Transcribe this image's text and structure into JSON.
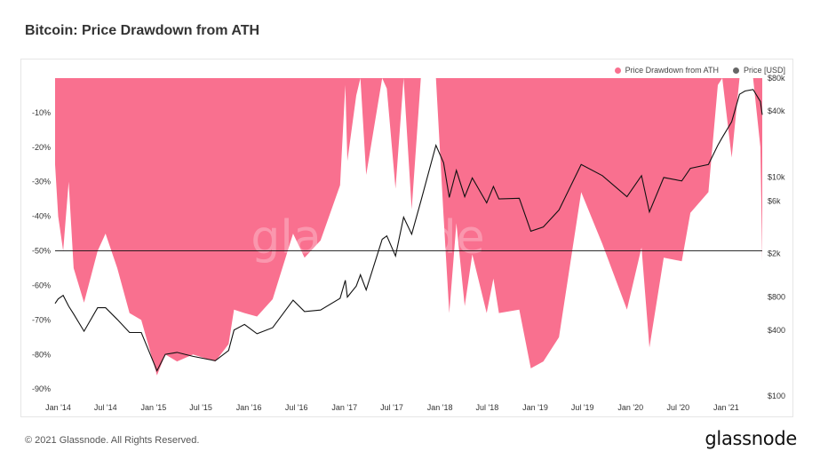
{
  "title": "Bitcoin: Price Drawdown from ATH",
  "footer": {
    "copyright": "© 2021 Glassnode. All Rights Reserved.",
    "brand": "glassnode"
  },
  "legend": [
    {
      "label": "Price Drawdown from ATH",
      "color": "#f9708f"
    },
    {
      "label": "Price [USD]",
      "color": "#666666"
    }
  ],
  "watermark": "glassnode",
  "chart_data": {
    "type": "area",
    "title": "Bitcoin: Price Drawdown from ATH",
    "x_ticks": [
      "Jan '14",
      "Jul '14",
      "Jan '15",
      "Jul '15",
      "Jan '16",
      "Jul '16",
      "Jan '17",
      "Jul '17",
      "Jan '18",
      "Jul '18",
      "Jan '19",
      "Jul '19",
      "Jan '20",
      "Jul '20",
      "Jan '21"
    ],
    "y_left": {
      "ticks": [
        "-10%",
        "-20%",
        "-30%",
        "-40%",
        "-50%",
        "-60%",
        "-70%",
        "-80%",
        "-90%"
      ],
      "range": [
        -92,
        0
      ]
    },
    "y_right": {
      "scale": "log",
      "ticks": [
        "$80k",
        "$40k",
        "$10k",
        "$6k",
        "$2k",
        "$800",
        "$400",
        "$100"
      ],
      "range": [
        100,
        80000
      ]
    },
    "reference_line": {
      "value": -50
    },
    "series": [
      {
        "name": "Price Drawdown from ATH",
        "axis": "left",
        "color": "#f9708f",
        "points": [
          [
            "2013-12-20",
            -25
          ],
          [
            "2014-01-01",
            -40
          ],
          [
            "2014-01-20",
            -50
          ],
          [
            "2014-02-10",
            -30
          ],
          [
            "2014-03-01",
            -55
          ],
          [
            "2014-04-10",
            -65
          ],
          [
            "2014-06-01",
            -50
          ],
          [
            "2014-07-01",
            -45
          ],
          [
            "2014-08-15",
            -55
          ],
          [
            "2014-10-01",
            -68
          ],
          [
            "2014-11-15",
            -70
          ],
          [
            "2015-01-14",
            -86
          ],
          [
            "2015-02-15",
            -80
          ],
          [
            "2015-04-01",
            -82
          ],
          [
            "2015-06-01",
            -80
          ],
          [
            "2015-08-25",
            -82
          ],
          [
            "2015-10-15",
            -77
          ],
          [
            "2015-11-05",
            -67
          ],
          [
            "2015-12-15",
            -68
          ],
          [
            "2016-02-01",
            -69
          ],
          [
            "2016-04-01",
            -64
          ],
          [
            "2016-06-18",
            -45
          ],
          [
            "2016-08-01",
            -52
          ],
          [
            "2016-10-01",
            -47
          ],
          [
            "2016-12-15",
            -31
          ],
          [
            "2017-01-04",
            -2
          ],
          [
            "2017-01-12",
            -24
          ],
          [
            "2017-02-15",
            -5
          ],
          [
            "2017-03-03",
            0
          ],
          [
            "2017-03-25",
            -28
          ],
          [
            "2017-05-25",
            0
          ],
          [
            "2017-06-12",
            -3
          ],
          [
            "2017-07-15",
            -32
          ],
          [
            "2017-08-15",
            0
          ],
          [
            "2017-09-15",
            -38
          ],
          [
            "2017-10-20",
            0
          ],
          [
            "2017-12-17",
            0
          ],
          [
            "2018-01-15",
            -40
          ],
          [
            "2018-02-06",
            -68
          ],
          [
            "2018-03-05",
            -42
          ],
          [
            "2018-04-06",
            -66
          ],
          [
            "2018-05-05",
            -51
          ],
          [
            "2018-06-29",
            -68
          ],
          [
            "2018-07-25",
            -58
          ],
          [
            "2018-08-15",
            -68
          ],
          [
            "2018-11-01",
            -67
          ],
          [
            "2018-12-15",
            -84
          ],
          [
            "2019-02-01",
            -82
          ],
          [
            "2019-04-02",
            -75
          ],
          [
            "2019-06-26",
            -33
          ],
          [
            "2019-09-15",
            -48
          ],
          [
            "2019-12-18",
            -67
          ],
          [
            "2020-02-12",
            -49
          ],
          [
            "2020-03-13",
            -78
          ],
          [
            "2020-05-07",
            -52
          ],
          [
            "2020-07-15",
            -53
          ],
          [
            "2020-08-17",
            -39
          ],
          [
            "2020-10-25",
            -33
          ],
          [
            "2020-11-30",
            -2
          ],
          [
            "2020-12-17",
            0
          ],
          [
            "2021-01-22",
            -23
          ],
          [
            "2021-02-21",
            0
          ],
          [
            "2021-03-14",
            0
          ],
          [
            "2021-04-14",
            0
          ],
          [
            "2021-05-12",
            -20
          ],
          [
            "2021-05-19",
            -53
          ]
        ]
      },
      {
        "name": "Price [USD]",
        "axis": "right",
        "color": "#111111",
        "points": [
          [
            "2013-12-20",
            700
          ],
          [
            "2014-01-01",
            770
          ],
          [
            "2014-01-20",
            830
          ],
          [
            "2014-02-10",
            660
          ],
          [
            "2014-03-01",
            560
          ],
          [
            "2014-04-10",
            390
          ],
          [
            "2014-06-01",
            640
          ],
          [
            "2014-07-01",
            640
          ],
          [
            "2014-08-15",
            500
          ],
          [
            "2014-10-01",
            380
          ],
          [
            "2014-11-15",
            380
          ],
          [
            "2015-01-14",
            170
          ],
          [
            "2015-02-15",
            240
          ],
          [
            "2015-04-01",
            250
          ],
          [
            "2015-06-01",
            230
          ],
          [
            "2015-08-25",
            210
          ],
          [
            "2015-10-15",
            260
          ],
          [
            "2015-11-05",
            400
          ],
          [
            "2015-12-15",
            450
          ],
          [
            "2016-02-01",
            370
          ],
          [
            "2016-04-01",
            420
          ],
          [
            "2016-06-18",
            750
          ],
          [
            "2016-08-01",
            590
          ],
          [
            "2016-10-01",
            610
          ],
          [
            "2016-12-15",
            780
          ],
          [
            "2017-01-04",
            1140
          ],
          [
            "2017-01-12",
            800
          ],
          [
            "2017-02-15",
            1010
          ],
          [
            "2017-03-03",
            1280
          ],
          [
            "2017-03-25",
            930
          ],
          [
            "2017-05-25",
            2700
          ],
          [
            "2017-06-12",
            2900
          ],
          [
            "2017-07-15",
            1900
          ],
          [
            "2017-08-15",
            4300
          ],
          [
            "2017-09-15",
            3000
          ],
          [
            "2017-10-20",
            6000
          ],
          [
            "2017-12-17",
            19500
          ],
          [
            "2018-01-15",
            13500
          ],
          [
            "2018-02-06",
            6500
          ],
          [
            "2018-03-05",
            11500
          ],
          [
            "2018-04-06",
            6600
          ],
          [
            "2018-05-05",
            9800
          ],
          [
            "2018-06-29",
            5800
          ],
          [
            "2018-07-25",
            8200
          ],
          [
            "2018-08-15",
            6300
          ],
          [
            "2018-11-01",
            6400
          ],
          [
            "2018-12-15",
            3200
          ],
          [
            "2019-02-01",
            3500
          ],
          [
            "2019-04-02",
            5000
          ],
          [
            "2019-06-26",
            13000
          ],
          [
            "2019-09-15",
            10300
          ],
          [
            "2019-12-18",
            6600
          ],
          [
            "2020-02-12",
            10300
          ],
          [
            "2020-03-13",
            4800
          ],
          [
            "2020-05-07",
            9900
          ],
          [
            "2020-07-15",
            9200
          ],
          [
            "2020-08-17",
            12000
          ],
          [
            "2020-10-25",
            13000
          ],
          [
            "2020-11-30",
            19500
          ],
          [
            "2020-12-17",
            23000
          ],
          [
            "2021-01-22",
            32000
          ],
          [
            "2021-02-21",
            57000
          ],
          [
            "2021-03-14",
            61000
          ],
          [
            "2021-04-14",
            63000
          ],
          [
            "2021-05-12",
            49000
          ],
          [
            "2021-05-19",
            37000
          ]
        ]
      }
    ]
  }
}
